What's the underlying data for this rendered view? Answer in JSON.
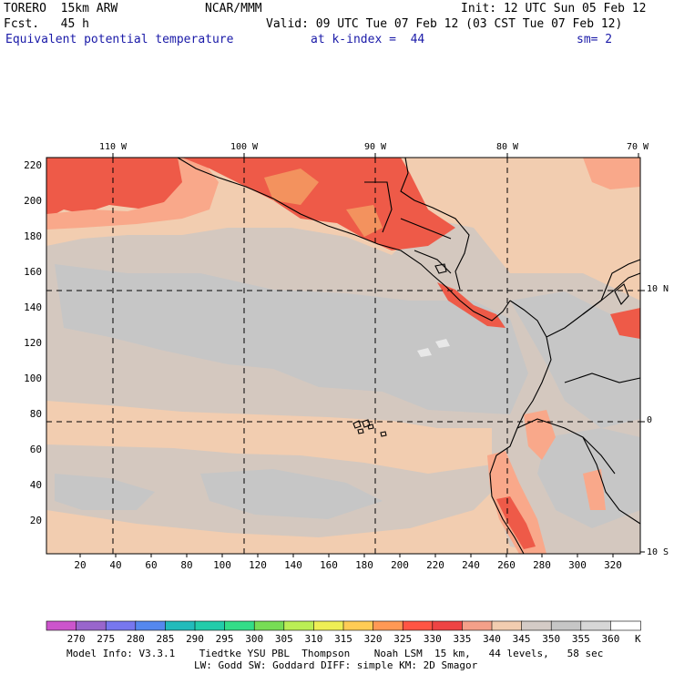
{
  "header": {
    "model": "TORERO  15km ARW",
    "org": "NCAR/MMM",
    "init": "Init: 12 UTC Sun 05 Feb 12",
    "fcst": "Fcst.   45 h",
    "valid": "Valid: 09 UTC Tue 07 Feb 12 (03 CST Tue 07 Feb 12)",
    "field": "Equivalent potential temperature",
    "level": "at k-index =  44",
    "smoothing": "sm= 2"
  },
  "longitude_labels": [
    "110 W",
    "100 W",
    "90 W",
    "80 W",
    "70 W"
  ],
  "latitude_labels": [
    "10 N",
    "0",
    "10 S"
  ],
  "x_ticks": [
    "20",
    "40",
    "60",
    "80",
    "100",
    "120",
    "140",
    "160",
    "180",
    "200",
    "220",
    "240",
    "260",
    "280",
    "300",
    "320"
  ],
  "y_ticks": [
    "220",
    "200",
    "180",
    "160",
    "140",
    "120",
    "100",
    "80",
    "60",
    "40",
    "20"
  ],
  "colorbar": {
    "unit": "K",
    "labels": [
      "270",
      "275",
      "280",
      "285",
      "290",
      "295",
      "300",
      "305",
      "310",
      "315",
      "320",
      "325",
      "330",
      "335",
      "340",
      "345",
      "350",
      "355",
      "360"
    ],
    "colors": [
      "#cc55cc",
      "#9966cc",
      "#7777ee",
      "#5588ee",
      "#22bbbb",
      "#22ccaa",
      "#33dd88",
      "#77dd55",
      "#bbee55",
      "#eeee55",
      "#ffcc55",
      "#ff9955",
      "#ff5544",
      "#ee4444",
      "#f4a089",
      "#f2cdb0",
      "#d4cbc6",
      "#c6c6c6",
      "#d7d7d7",
      "#ffffff"
    ]
  },
  "footer": {
    "line1": "Model Info: V3.3.1    Tiedtke YSU PBL  Thompson    Noah LSM  15 km,   44 levels,   58 sec",
    "line2": "LW: Godd SW: Goddard DIFF: simple KM: 2D Smagor"
  }
}
